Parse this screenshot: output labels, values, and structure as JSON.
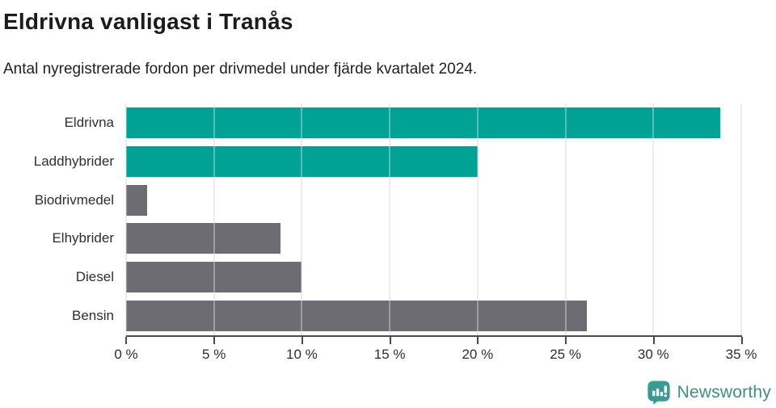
{
  "header": {
    "title": "Eldrivna vanligast i Tranås",
    "subtitle": "Antal nyregistrerade fordon per drivmedel under fjärde kvartalet 2024."
  },
  "chart_data": {
    "type": "bar",
    "orientation": "horizontal",
    "title": "Eldrivna vanligast i Tranås",
    "subtitle": "Antal nyregistrerade fordon per drivmedel under fjärde kvartalet 2024.",
    "categories": [
      "Eldrivna",
      "Laddhybrider",
      "Biodrivmedel",
      "Elhybrider",
      "Diesel",
      "Bensin"
    ],
    "values": [
      33.8,
      20.0,
      1.2,
      8.8,
      10.0,
      26.2
    ],
    "unit": "%",
    "xlabel": "",
    "ylabel": "",
    "xlim": [
      0,
      35
    ],
    "x_ticks": [
      0,
      5,
      10,
      15,
      20,
      25,
      30,
      35
    ],
    "x_tick_labels": [
      "0 %",
      "5 %",
      "10 %",
      "15 %",
      "20 %",
      "25 %",
      "30 %",
      "35 %"
    ],
    "grid": "vertical",
    "legend": "none",
    "bar_colors": [
      "#00A295",
      "#00A295",
      "#6D6C73",
      "#6D6C73",
      "#6D6C73",
      "#6D6C73"
    ],
    "highlight_color": "#00A295",
    "default_color": "#6D6C73"
  },
  "footer": {
    "brand": "Newsworthy",
    "brand_color": "#3E8E89",
    "icon_color": "#3B9A91"
  }
}
